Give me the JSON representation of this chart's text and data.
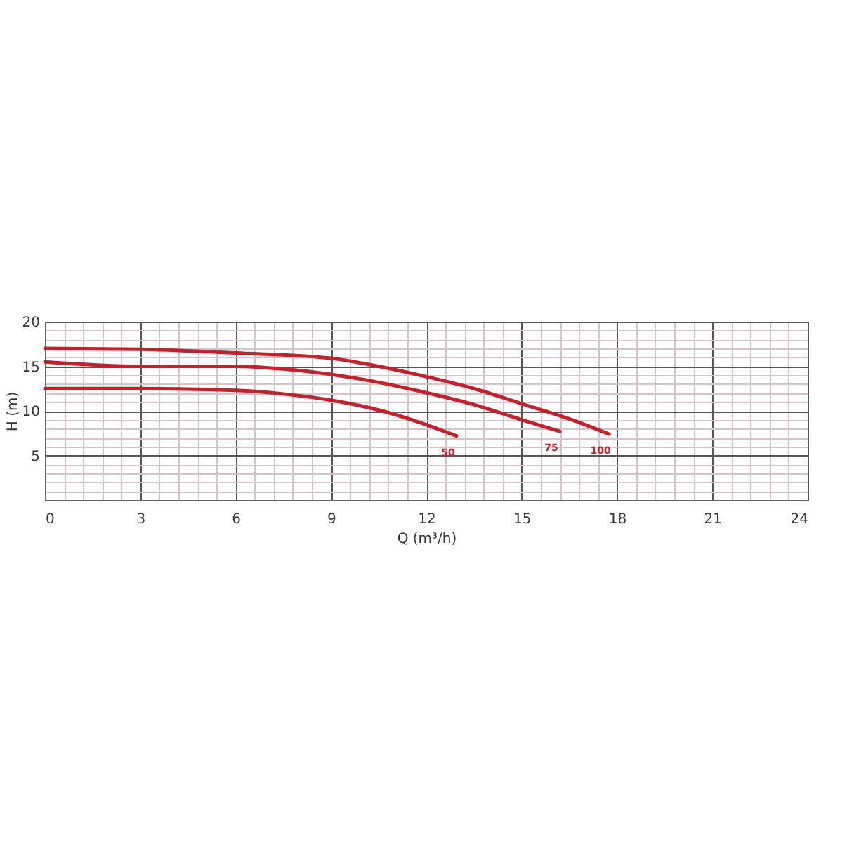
{
  "chart_data": {
    "type": "line",
    "xlabel": "Q (m³/h)",
    "ylabel": "H (m)",
    "xlim": [
      0,
      24
    ],
    "ylim": [
      0,
      20
    ],
    "xticks": [
      0,
      {
        "value": 0.6,
        "label": null
      },
      {
        "value": 1.2,
        "label": null
      },
      {
        "value": 1.8,
        "label": null
      },
      {
        "value": 2.4,
        "label": null
      },
      3,
      {
        "value": 3.6,
        "label": null
      },
      {
        "value": 4.2,
        "label": null
      },
      {
        "value": 4.8,
        "label": null
      },
      {
        "value": 5.4,
        "label": null
      },
      6,
      {
        "value": 6.6,
        "label": null
      },
      {
        "value": 7.2,
        "label": null
      },
      {
        "value": 7.8,
        "label": null
      },
      {
        "value": 8.4,
        "label": null
      },
      9,
      {
        "value": 9.6,
        "label": null
      },
      {
        "value": 10.2,
        "label": null
      },
      {
        "value": 10.8,
        "label": null
      },
      {
        "value": 11.4,
        "label": null
      },
      12,
      {
        "value": 12.6,
        "label": null
      },
      {
        "value": 13.2,
        "label": null
      },
      {
        "value": 13.8,
        "label": null
      },
      {
        "value": 14.4,
        "label": null
      },
      15,
      {
        "value": 15.6,
        "label": null
      },
      {
        "value": 16.2,
        "label": null
      },
      {
        "value": 16.8,
        "label": null
      },
      {
        "value": 17.4,
        "label": null
      },
      18,
      {
        "value": 18.6,
        "label": null
      },
      {
        "value": 19.2,
        "label": null
      },
      {
        "value": 19.8,
        "label": null
      },
      {
        "value": 20.4,
        "label": null
      },
      21,
      {
        "value": 21.6,
        "label": null
      },
      {
        "value": 22.2,
        "label": null
      },
      {
        "value": 22.8,
        "label": null
      },
      {
        "value": 23.4,
        "label": null
      },
      24
    ],
    "yticks": [
      {
        "value": 0,
        "label": null
      },
      {
        "value": 1,
        "label": null
      },
      {
        "value": 2,
        "label": null
      },
      {
        "value": 3,
        "label": null
      },
      {
        "value": 4,
        "label": null
      },
      5,
      {
        "value": 6,
        "label": null
      },
      {
        "value": 7,
        "label": null
      },
      {
        "value": 8,
        "label": null
      },
      {
        "value": 9,
        "label": null
      },
      10,
      {
        "value": 11,
        "label": null
      },
      {
        "value": 12,
        "label": null
      },
      {
        "value": 13,
        "label": null
      },
      {
        "value": 14,
        "label": null
      },
      15,
      {
        "value": 16,
        "label": null
      },
      {
        "value": 17,
        "label": null
      },
      {
        "value": 18,
        "label": null
      },
      {
        "value": 19,
        "label": null
      },
      20
    ],
    "grid": true,
    "line_style": "solid",
    "series": [
      {
        "name": "50",
        "color": "#c8202a",
        "x": [
          0,
          3,
          6,
          7.5,
          9,
          10.5,
          11.8,
          12.95
        ],
        "values": [
          12.5,
          12.5,
          12.3,
          11.9,
          11.2,
          10.1,
          8.7,
          7.2
        ]
      },
      {
        "name": "75",
        "color": "#c8202a",
        "x": [
          0,
          3,
          6,
          7.5,
          9,
          10.5,
          11.8,
          13.5,
          15,
          16.2
        ],
        "values": [
          15.5,
          15,
          15,
          14.7,
          14.1,
          13.2,
          12.2,
          10.7,
          9.0,
          7.7
        ]
      },
      {
        "name": "100",
        "color": "#c8202a",
        "x": [
          0,
          3,
          6,
          9,
          10.5,
          11.8,
          13.5,
          15,
          16.5,
          17.75
        ],
        "values": [
          17,
          16.9,
          16.5,
          15.9,
          15,
          14,
          12.5,
          10.8,
          9.1,
          7.4
        ]
      }
    ]
  }
}
